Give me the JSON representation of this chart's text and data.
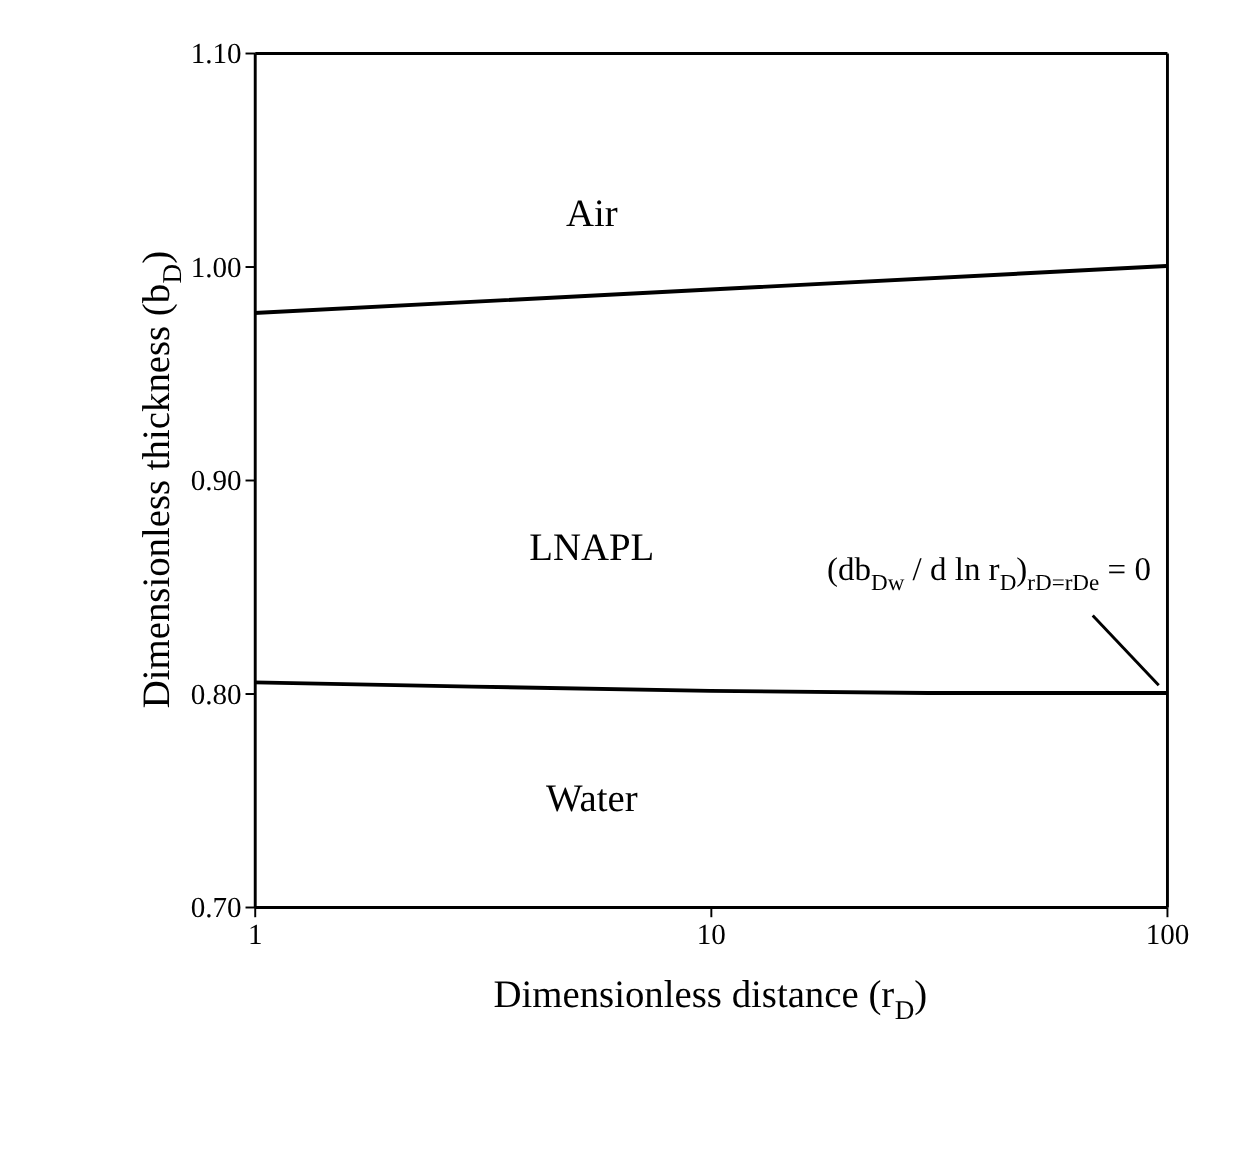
{
  "chart_data": {
    "type": "line",
    "xlabel": "Dimensionless distance (r$_{D}$)",
    "ylabel": "Dimensionless thickness (b$_{D}$)",
    "log": "x",
    "xlim": [
      1,
      100
    ],
    "xticks": [
      1,
      10,
      100
    ],
    "ylim": [
      0.7,
      1.1
    ],
    "yticks": [
      {
        "value": 0.7,
        "label": "0.70"
      },
      {
        "value": 0.8,
        "label": "0.80"
      },
      {
        "value": 0.9,
        "label": "0.90"
      },
      {
        "value": 1.0,
        "label": "1.00"
      },
      {
        "value": 1.1,
        "label": "1.10"
      }
    ],
    "series": [
      {
        "color": "#000000",
        "x": [
          1,
          10,
          100
        ],
        "values": [
          0.978,
          0.989,
          1.0
        ]
      },
      {
        "color": "#000000",
        "x": [
          1,
          3,
          10,
          30,
          100
        ],
        "values": [
          0.805,
          0.803,
          0.801,
          0.8,
          0.8
        ]
      }
    ],
    "marker": "none",
    "line_style": "solid",
    "grid": false,
    "legend": false,
    "annotations": [
      "Air",
      "LNAPL",
      "Water",
      {
        "text": "(db$_{Dw}$ / d ln r$_{D}$)$_{rD=rDe}$ = 0",
        "x": 100,
        "y": 0.8
      }
    ]
  }
}
